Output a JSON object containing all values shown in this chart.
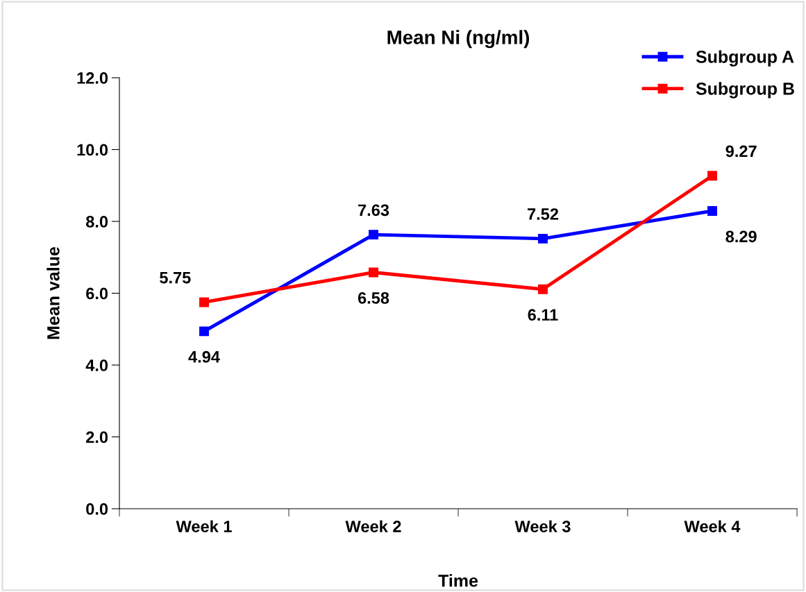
{
  "chart_data": {
    "type": "line",
    "title": "Mean Ni (ng/ml)",
    "xlabel": "Time",
    "ylabel": "Mean value",
    "categories": [
      "Week 1",
      "Week 2",
      "Week 3",
      "Week 4"
    ],
    "series": [
      {
        "name": "Subgroup A",
        "color": "#0000ff",
        "values": [
          4.94,
          7.63,
          7.52,
          8.29
        ]
      },
      {
        "name": "Subgroup B",
        "color": "#ff0000",
        "values": [
          5.75,
          6.58,
          6.11,
          9.27
        ]
      }
    ],
    "ylim": [
      0,
      12
    ],
    "yticks": [
      {
        "value": 0,
        "label": "0.0"
      },
      {
        "value": 2,
        "label": "2.0"
      },
      {
        "value": 4,
        "label": "4.0"
      },
      {
        "value": 6,
        "label": "6.0"
      },
      {
        "value": 8,
        "label": "8.0"
      },
      {
        "value": 10,
        "label": "10.0"
      },
      {
        "value": 12,
        "label": "12.0"
      }
    ],
    "data_labels": true,
    "grid": false,
    "legend": "top right",
    "marker": "square",
    "line_style": "solid"
  }
}
